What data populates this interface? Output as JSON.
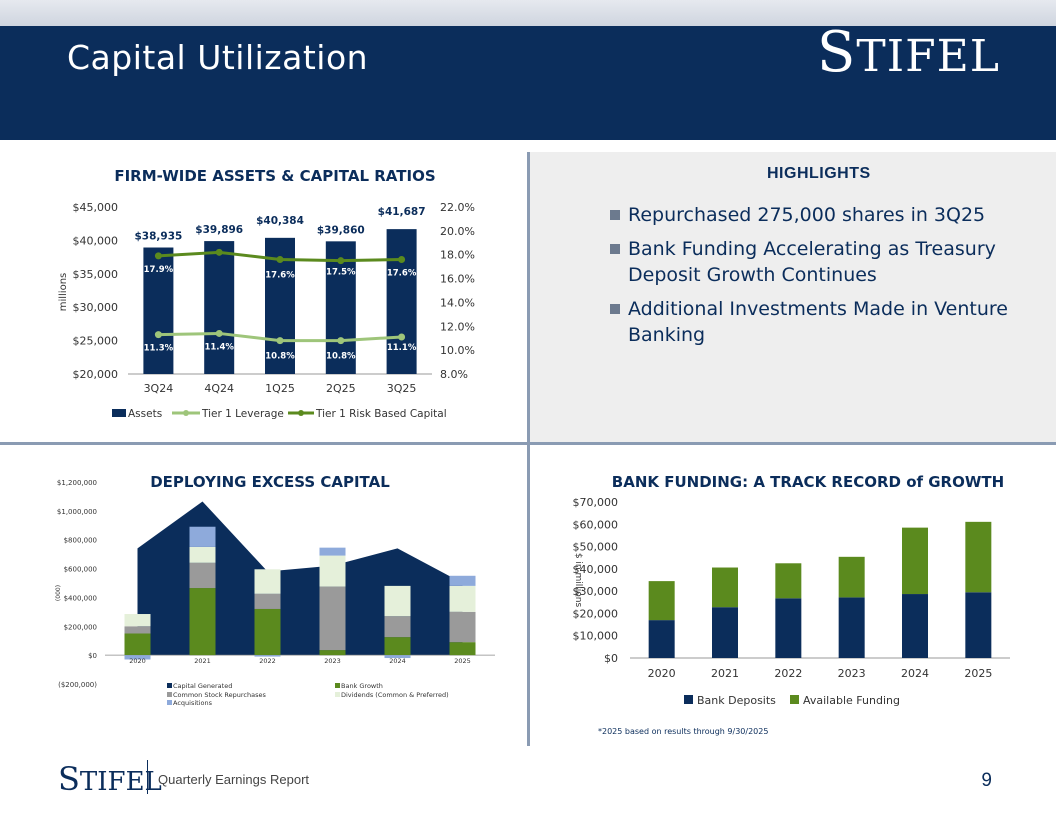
{
  "header": {
    "title": "Capital Utilization",
    "logo_text": "Stifel"
  },
  "highlights": {
    "title": "HIGHLIGHTS",
    "items": [
      "Repurchased 275,000 shares in 3Q25",
      "Bank Funding Accelerating as Treasury Deposit Growth Continues",
      "Additional Investments Made in Venture Banking"
    ]
  },
  "colors": {
    "navy": "#0b2d5b",
    "green": "#5b8a1e",
    "lightgreen": "#9ec57a",
    "gray": "#9a9a9a",
    "palegreen": "#e5f0da",
    "lightblue": "#8eaadb"
  },
  "chart_data": [
    {
      "type": "bar",
      "title": "FIRM-WIDE ASSETS & CAPITAL RATIOS",
      "ylabel": "millions",
      "categories": [
        "3Q24",
        "4Q24",
        "1Q25",
        "2Q25",
        "3Q25"
      ],
      "ylim": [
        20000,
        45000
      ],
      "y_ticks": [
        "$20,000",
        "$25,000",
        "$30,000",
        "$35,000",
        "$40,000",
        "$45,000"
      ],
      "y2lim": [
        8.0,
        22.0
      ],
      "y2_ticks": [
        "8.0%",
        "10.0%",
        "12.0%",
        "14.0%",
        "16.0%",
        "18.0%",
        "20.0%",
        "22.0%"
      ],
      "series": [
        {
          "name": "Assets",
          "values": [
            38935,
            39896,
            40384,
            39860,
            41687
          ],
          "labels": [
            "$38,935",
            "$39,896",
            "$40,384",
            "$39,860",
            "$41,687"
          ]
        },
        {
          "name": "Tier 1 Leverage",
          "values": [
            11.3,
            11.4,
            10.8,
            10.8,
            11.1
          ],
          "labels": [
            "11.3%",
            "11.4%",
            "10.8%",
            "10.8%",
            "11.1%"
          ]
        },
        {
          "name": "Tier 1 Risk Based Capital",
          "values": [
            17.9,
            18.2,
            17.6,
            17.5,
            17.6
          ],
          "labels": [
            "17.9%",
            "18.2%",
            "17.6%",
            "17.5%",
            "17.6%"
          ]
        }
      ]
    },
    {
      "type": "bar",
      "subtype": "stacked-bar-with-area",
      "title": "DEPLOYING EXCESS CAPITAL",
      "ylabel": "(000)",
      "categories": [
        "2020",
        "2021",
        "2022",
        "2023",
        "2024",
        "2025"
      ],
      "ylim": [
        -200000,
        1200000
      ],
      "y_ticks": [
        "($200,000)",
        "$0",
        "$200,000",
        "$400,000",
        "$600,000",
        "$800,000",
        "$1,000,000",
        "$1,200,000"
      ],
      "series": [
        {
          "name": "Capital Generated",
          "values": [
            740000,
            1065000,
            580000,
            620000,
            740000,
            500000
          ]
        },
        {
          "name": "Bank Growth",
          "values": [
            150000,
            465000,
            320000,
            35000,
            125000,
            90000
          ]
        },
        {
          "name": "Common Stock Repurchases",
          "values": [
            50000,
            175000,
            105000,
            440000,
            145000,
            210000
          ]
        },
        {
          "name": "Dividends (Common & Preferred)",
          "values": [
            85000,
            110000,
            170000,
            215000,
            210000,
            180000
          ]
        },
        {
          "name": "Acquisitions",
          "values": [
            -30000,
            140000,
            -10000,
            55000,
            -20000,
            70000
          ]
        }
      ]
    },
    {
      "type": "bar",
      "subtype": "stacked",
      "title": "BANK FUNDING: A TRACK RECORD of GROWTH",
      "ylabel": "$ in millions",
      "categories": [
        "2020",
        "2021",
        "2022",
        "2023",
        "2024",
        "2025"
      ],
      "ylim": [
        0,
        70000
      ],
      "y_ticks": [
        "$0",
        "$10,000",
        "$20,000",
        "$30,000",
        "$40,000",
        "$50,000",
        "$60,000",
        "$70,000"
      ],
      "series": [
        {
          "name": "Bank Deposits",
          "values": [
            17000,
            22800,
            26800,
            27200,
            28700,
            29500
          ]
        },
        {
          "name": "Available Funding",
          "values": [
            17500,
            17800,
            15700,
            18200,
            29800,
            31600
          ]
        }
      ],
      "footnote": "*2025 based on results through 9/30/2025"
    }
  ],
  "footer": {
    "logo_text": "Stifel",
    "label": "Quarterly Earnings Report",
    "page_number": "9"
  }
}
